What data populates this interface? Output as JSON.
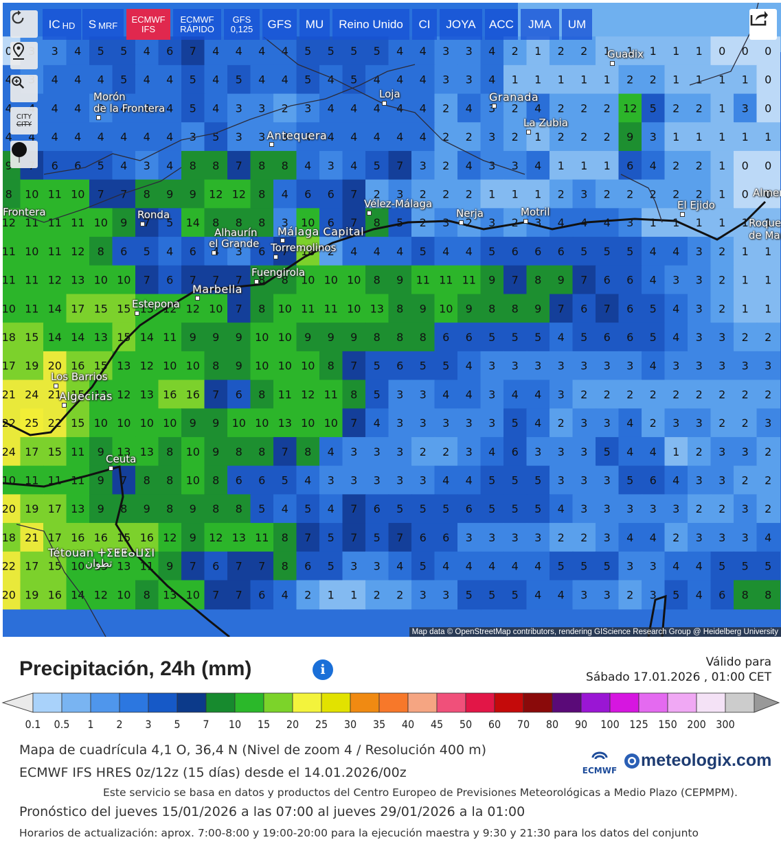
{
  "toolbar": {
    "items": [
      {
        "label": "IC",
        "sub": "HD",
        "two": false
      },
      {
        "label": "S",
        "sub": "MRF",
        "two": false
      },
      {
        "label": "ECMWF",
        "sub": "IFS",
        "two": true,
        "active": true
      },
      {
        "label": "ECMWF",
        "sub": "RÁPIDO",
        "two": true
      },
      {
        "label": "GFS",
        "sub": "0,125",
        "two": true
      },
      {
        "label": "GFS",
        "sub": "",
        "two": false
      },
      {
        "label": "MU",
        "sub": "",
        "two": false
      },
      {
        "label": "Reino Unido",
        "sub": "",
        "two": false
      },
      {
        "label": "CI",
        "sub": "",
        "two": false
      },
      {
        "label": "JOYA",
        "sub": "",
        "two": false
      },
      {
        "label": "ACC",
        "sub": "",
        "two": false
      },
      {
        "label": "JMA",
        "sub": "",
        "two": false
      },
      {
        "label": "UM",
        "sub": "",
        "two": false
      }
    ],
    "side": [
      "refresh-icon",
      "location-pin-icon",
      "zoom-icon",
      "city-toggle-icon",
      "pin-marker-icon"
    ],
    "city_toggle": "CITY"
  },
  "map": {
    "attribution": "Map data © OpenStreetMap contributors, rendering GIScience Research Group @ Heidelberg University",
    "cities": [
      {
        "name": "Guadix",
        "dot": true
      },
      {
        "name": "Morón",
        "dot": false
      },
      {
        "name": "de la Frontera",
        "dot": true
      },
      {
        "name": "Loja",
        "dot": true
      },
      {
        "name": "Granada",
        "dot": true
      },
      {
        "name": "La Zubia",
        "dot": true
      },
      {
        "name": "Antequera",
        "dot": true
      },
      {
        "name": "Ronda",
        "dot": true
      },
      {
        "name": "Vélez-Málaga",
        "dot": true
      },
      {
        "name": "Nerja",
        "dot": true
      },
      {
        "name": "Motril",
        "dot": true
      },
      {
        "name": "El Ejido",
        "dot": true
      },
      {
        "name": "Alhaurín",
        "dot": false
      },
      {
        "name": "el Grande",
        "dot": true
      },
      {
        "name": "Málaga Capital",
        "dot": true
      },
      {
        "name": "Torremolinos",
        "dot": true
      },
      {
        "name": "Fuengirola",
        "dot": true
      },
      {
        "name": "Marbella",
        "dot": true
      },
      {
        "name": "Estepona",
        "dot": true
      },
      {
        "name": "Los Barrios",
        "dot": true
      },
      {
        "name": "Algeciras",
        "dot": true
      },
      {
        "name": "Ceuta",
        "dot": true
      },
      {
        "name": "Tétouan ⵜⵉⵟⵟⴰⵡⵉⵏ",
        "dot": false
      },
      {
        "name": "تطوان",
        "dot": false
      },
      {
        "name": "Almería",
        "dot": false
      },
      {
        "name": "Roquetas",
        "dot": false
      },
      {
        "name": "de Mar",
        "dot": false
      },
      {
        "name": "Frontera",
        "dot": false
      }
    ],
    "grid_values": [
      [
        0,
        3,
        3,
        4,
        5,
        5,
        4,
        6,
        7,
        4,
        4,
        4,
        4,
        5,
        5,
        5,
        5,
        4,
        4,
        3,
        3,
        4,
        2,
        1,
        2,
        2,
        1,
        1,
        1,
        1,
        1,
        0,
        0,
        0
      ],
      [
        4,
        3,
        4,
        4,
        4,
        5,
        4,
        4,
        5,
        4,
        5,
        4,
        4,
        5,
        4,
        5,
        4,
        4,
        4,
        3,
        3,
        4,
        1,
        1,
        1,
        1,
        1,
        2,
        2,
        1,
        1,
        1,
        1,
        0
      ],
      [
        4,
        4,
        4,
        4,
        3,
        4,
        4,
        4,
        5,
        4,
        3,
        3,
        2,
        3,
        4,
        4,
        4,
        4,
        4,
        2,
        4,
        3,
        2,
        4,
        2,
        2,
        2,
        12,
        5,
        2,
        2,
        1,
        3,
        0
      ],
      [
        4,
        4,
        4,
        4,
        4,
        4,
        4,
        4,
        3,
        5,
        3,
        3,
        3,
        4,
        4,
        4,
        4,
        4,
        4,
        2,
        2,
        3,
        2,
        1,
        2,
        2,
        2,
        9,
        3,
        1,
        1,
        1,
        1,
        1
      ],
      [
        9,
        7,
        6,
        6,
        5,
        4,
        3,
        4,
        8,
        8,
        7,
        8,
        8,
        4,
        3,
        4,
        5,
        7,
        3,
        2,
        4,
        3,
        3,
        4,
        1,
        1,
        1,
        6,
        4,
        2,
        2,
        1,
        0,
        0
      ],
      [
        8,
        10,
        11,
        10,
        7,
        7,
        8,
        9,
        9,
        12,
        12,
        8,
        4,
        6,
        6,
        7,
        2,
        3,
        2,
        2,
        2,
        1,
        1,
        1,
        2,
        3,
        2,
        2,
        2,
        2,
        2,
        1,
        0,
        0
      ],
      [
        12,
        11,
        11,
        11,
        10,
        9,
        7,
        5,
        14,
        8,
        8,
        8,
        3,
        10,
        6,
        7,
        8,
        5,
        2,
        3,
        2,
        3,
        2,
        3,
        4,
        4,
        4,
        3,
        1,
        1,
        1,
        1,
        1,
        1
      ],
      [
        11,
        10,
        11,
        12,
        8,
        6,
        5,
        4,
        6,
        4,
        3,
        6,
        7,
        18,
        2,
        4,
        4,
        4,
        5,
        4,
        4,
        5,
        6,
        6,
        6,
        5,
        5,
        5,
        4,
        4,
        3,
        2,
        1,
        1
      ],
      [
        11,
        11,
        12,
        13,
        10,
        10,
        7,
        6,
        7,
        7,
        7,
        8,
        8,
        10,
        10,
        10,
        8,
        9,
        11,
        11,
        11,
        9,
        7,
        8,
        9,
        7,
        6,
        6,
        4,
        3,
        3,
        2,
        1,
        1
      ],
      [
        10,
        11,
        14,
        17,
        15,
        15,
        13,
        12,
        12,
        10,
        7,
        8,
        10,
        11,
        11,
        10,
        13,
        8,
        9,
        10,
        9,
        8,
        8,
        9,
        7,
        6,
        7,
        6,
        5,
        4,
        3,
        2,
        1,
        1
      ],
      [
        18,
        15,
        14,
        14,
        13,
        15,
        14,
        11,
        9,
        9,
        9,
        10,
        10,
        9,
        9,
        9,
        8,
        8,
        8,
        6,
        6,
        5,
        5,
        5,
        4,
        5,
        6,
        6,
        5,
        4,
        3,
        3,
        2,
        2
      ],
      [
        17,
        19,
        20,
        16,
        15,
        13,
        12,
        10,
        10,
        8,
        9,
        10,
        10,
        10,
        8,
        7,
        5,
        6,
        5,
        5,
        4,
        3,
        3,
        3,
        3,
        3,
        3,
        3,
        4,
        3,
        3,
        3,
        3,
        3
      ],
      [
        21,
        24,
        21,
        15,
        12,
        12,
        13,
        16,
        16,
        7,
        6,
        8,
        11,
        12,
        11,
        8,
        5,
        3,
        3,
        4,
        4,
        3,
        4,
        4,
        3,
        2,
        2,
        2,
        2,
        2,
        2,
        2,
        2,
        2
      ],
      [
        22,
        25,
        22,
        15,
        10,
        10,
        10,
        10,
        9,
        9,
        10,
        10,
        13,
        10,
        10,
        7,
        4,
        3,
        3,
        3,
        3,
        3,
        5,
        4,
        2,
        3,
        3,
        4,
        2,
        3,
        3,
        2,
        2,
        3
      ],
      [
        24,
        17,
        15,
        11,
        9,
        13,
        13,
        8,
        10,
        9,
        8,
        8,
        7,
        8,
        4,
        3,
        3,
        3,
        2,
        2,
        3,
        4,
        6,
        3,
        3,
        3,
        5,
        4,
        4,
        1,
        2,
        3,
        3,
        2
      ],
      [
        10,
        11,
        11,
        11,
        9,
        7,
        8,
        8,
        10,
        8,
        6,
        6,
        5,
        4,
        3,
        3,
        3,
        3,
        3,
        4,
        4,
        5,
        5,
        5,
        3,
        3,
        3,
        5,
        6,
        4,
        3,
        3,
        2,
        2
      ],
      [
        20,
        19,
        17,
        13,
        9,
        8,
        9,
        8,
        9,
        8,
        8,
        5,
        4,
        5,
        4,
        7,
        6,
        5,
        5,
        5,
        6,
        5,
        5,
        5,
        4,
        3,
        3,
        3,
        3,
        3,
        2,
        2,
        3,
        2
      ],
      [
        18,
        21,
        17,
        16,
        16,
        15,
        16,
        12,
        9,
        12,
        13,
        11,
        8,
        7,
        5,
        7,
        5,
        7,
        6,
        6,
        3,
        3,
        3,
        3,
        2,
        2,
        3,
        4,
        4,
        2,
        3,
        3,
        3,
        4
      ],
      [
        22,
        17,
        15,
        10,
        13,
        13,
        11,
        9,
        7,
        6,
        7,
        7,
        8,
        6,
        5,
        3,
        3,
        4,
        5,
        4,
        4,
        4,
        4,
        4,
        5,
        5,
        5,
        3,
        3,
        4,
        4,
        5,
        5,
        5
      ],
      [
        20,
        19,
        16,
        14,
        12,
        10,
        8,
        13,
        10,
        7,
        7,
        6,
        4,
        2,
        1,
        1,
        2,
        2,
        3,
        3,
        5,
        5,
        5,
        4,
        4,
        3,
        3,
        2,
        3,
        5,
        4,
        6,
        8,
        8
      ]
    ]
  },
  "legend": {
    "title": "Precipitación, 24h (mm)",
    "info_icon": "i",
    "valid_label": "Válido para",
    "valid_time": "Sábado 17.01.2026 , 01:00 CET",
    "ticks": [
      "0.1",
      "0.5",
      "1",
      "2",
      "3",
      "5",
      "7",
      "10",
      "15",
      "20",
      "25",
      "30",
      "35",
      "40",
      "45",
      "50",
      "60",
      "70",
      "80",
      "90",
      "100",
      "125",
      "150",
      "200",
      "300"
    ],
    "colors": [
      "#eaeaea",
      "#a9d2fa",
      "#79b4f2",
      "#4f96ec",
      "#2c77e0",
      "#1659c7",
      "#0c3a8a",
      "#178a2e",
      "#2bb82a",
      "#7cd32a",
      "#f3f33c",
      "#e2e200",
      "#f08a12",
      "#f7782a",
      "#f5a582",
      "#f0507a",
      "#e21647",
      "#c40a0a",
      "#8a0a0a",
      "#5a0a78",
      "#9a16d4",
      "#d616e0",
      "#e46af0",
      "#f0a8f4",
      "#f4e2f6",
      "#cccccc",
      "#999999"
    ]
  },
  "info": {
    "line1": "Mapa de cuadrícula 4,1 O, 36,4 N (Nivel de zoom 4 / Resolución 400 m)",
    "line2": "ECMWF IFS HRES 0z/12z (15 días) desde el 14.01.2026/00z",
    "line3": "Este servicio se basa en datos y productos del Centro Europeo de Previsiones Meteorológicas a Medio Plazo (CEPMPM).",
    "line4": "Pronóstico del jueves 15/01/2026 a las 07:00 al jueves 29/01/2026 a la 01:00",
    "line5": "Horarios de actualización: aprox. 7:00-8:00 y 19:00-20:00 para la ejecución maestra y 9:30 y 21:30 para los datos del conjunto",
    "ecmwf_label": "ECMWF",
    "brand": "meteologix.com"
  }
}
